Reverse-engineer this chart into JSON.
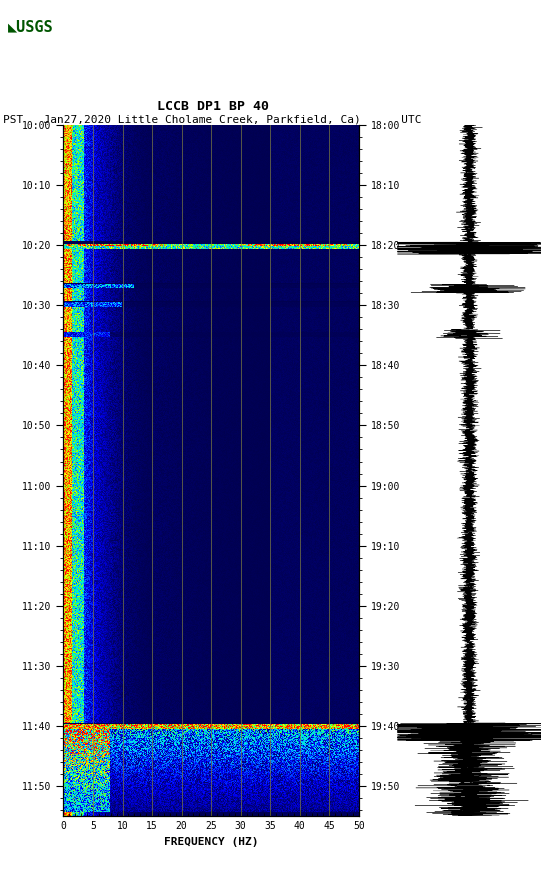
{
  "title_line1": "LCCB DP1 BP 40",
  "title_line2": "PST   Jan27,2020 Little Cholame Creek, Parkfield, Ca)      UTC",
  "xlabel": "FREQUENCY (HZ)",
  "freq_min": 0,
  "freq_max": 50,
  "left_ticks": [
    "10:00",
    "10:10",
    "10:20",
    "10:30",
    "10:40",
    "10:50",
    "11:00",
    "11:10",
    "11:20",
    "11:30",
    "11:40",
    "11:50"
  ],
  "right_ticks": [
    "18:00",
    "18:10",
    "18:20",
    "18:30",
    "18:40",
    "18:50",
    "19:00",
    "19:10",
    "19:20",
    "19:30",
    "19:40",
    "19:50"
  ],
  "freq_ticks": [
    0,
    5,
    10,
    15,
    20,
    25,
    30,
    35,
    40,
    45,
    50
  ],
  "vertical_grid_freqs": [
    5,
    10,
    15,
    20,
    25,
    30,
    35,
    40,
    45
  ],
  "background_color": "#ffffff",
  "total_minutes": 115,
  "grid_color": "#808040",
  "cmap_colors": [
    [
      0.0,
      "#000050"
    ],
    [
      0.1,
      "#0000a0"
    ],
    [
      0.2,
      "#0000ff"
    ],
    [
      0.3,
      "#0060ff"
    ],
    [
      0.4,
      "#00d0ff"
    ],
    [
      0.55,
      "#00ffb0"
    ],
    [
      0.65,
      "#80ff00"
    ],
    [
      0.75,
      "#ffff00"
    ],
    [
      0.85,
      "#ff8000"
    ],
    [
      0.93,
      "#ff2000"
    ],
    [
      1.0,
      "#ff0000"
    ]
  ]
}
